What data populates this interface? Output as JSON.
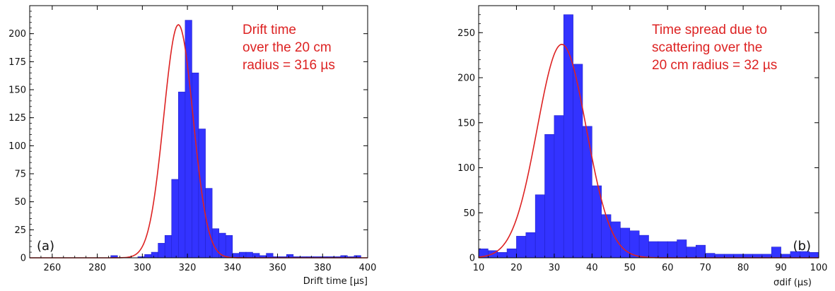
{
  "chart_data": [
    {
      "type": "bar",
      "panel_label": "(a)",
      "xlabel": "Drift time [µs]",
      "ylabel": "",
      "xlim": [
        250,
        400
      ],
      "ylim": [
        0,
        225
      ],
      "bin_width": 3,
      "x_ticks": [
        260,
        280,
        300,
        320,
        340,
        360,
        380,
        400
      ],
      "y_ticks": [
        0,
        25,
        50,
        75,
        100,
        125,
        150,
        175,
        200
      ],
      "bar_color": "#3333ff",
      "fit_color": "#dd2222",
      "annotation": [
        "Drift time",
        "over the 20 cm",
        "radius = 316 µs"
      ],
      "bins_start": [
        286,
        298,
        301,
        304,
        307,
        310,
        313,
        316,
        319,
        322,
        325,
        328,
        331,
        334,
        337,
        340,
        343,
        346,
        349,
        352,
        355,
        358,
        361,
        364,
        367,
        370,
        373,
        376,
        379,
        382,
        385,
        388,
        391,
        394
      ],
      "counts": [
        2,
        1,
        3,
        5,
        13,
        20,
        70,
        148,
        212,
        165,
        115,
        62,
        26,
        22,
        20,
        4,
        5,
        5,
        4,
        2,
        4,
        1,
        1,
        3,
        1,
        1,
        1,
        1,
        1,
        1,
        1,
        2,
        1,
        2
      ],
      "fit": {
        "mean": 316,
        "sigma": 6.5,
        "amplitude": 208
      }
    },
    {
      "type": "bar",
      "panel_label": "(b)",
      "xlabel": "σdif (µs)",
      "ylabel": "",
      "xlim": [
        10,
        100
      ],
      "ylim": [
        0,
        280
      ],
      "bin_width": 2.5,
      "x_ticks": [
        10,
        20,
        30,
        40,
        50,
        60,
        70,
        80,
        90,
        100
      ],
      "y_ticks": [
        0,
        50,
        100,
        150,
        200,
        250
      ],
      "bar_color": "#3333ff",
      "fit_color": "#dd2222",
      "annotation": [
        "Time spread due to",
        "scattering over the",
        "20 cm radius = 32 µs"
      ],
      "bins_start": [
        10,
        12.5,
        15,
        17.5,
        20,
        22.5,
        25,
        27.5,
        30,
        32.5,
        35,
        37.5,
        40,
        42.5,
        45,
        47.5,
        50,
        52.5,
        55,
        57.5,
        60,
        62.5,
        65,
        67.5,
        70,
        72.5,
        75,
        77.5,
        80,
        82.5,
        85,
        87.5,
        90,
        92.5,
        95,
        97.5
      ],
      "counts": [
        10,
        8,
        6,
        10,
        24,
        28,
        70,
        137,
        158,
        270,
        215,
        146,
        80,
        48,
        40,
        33,
        30,
        25,
        18,
        18,
        18,
        20,
        12,
        14,
        5,
        4,
        4,
        4,
        4,
        4,
        4,
        12,
        4,
        7,
        7,
        6
      ],
      "fit": {
        "mean": 32,
        "sigma": 6.5,
        "amplitude": 237
      }
    }
  ]
}
